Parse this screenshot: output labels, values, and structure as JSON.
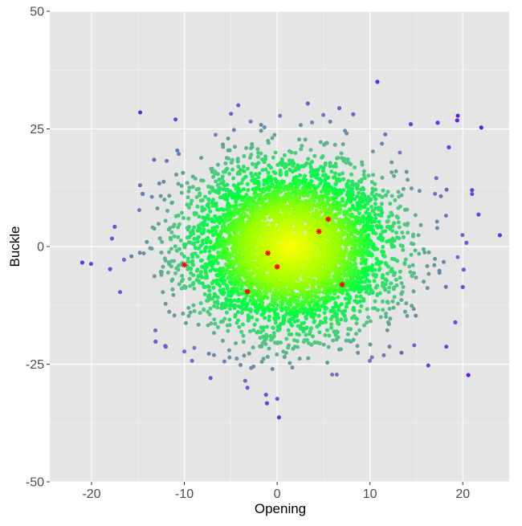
{
  "chart_data": {
    "type": "scatter",
    "title": "",
    "xlabel": "Opening",
    "ylabel": "Buckle",
    "xlim": [
      -24.5,
      25
    ],
    "ylim": [
      -50,
      50
    ],
    "x_ticks": [
      -20,
      -10,
      0,
      10,
      20
    ],
    "y_ticks": [
      -50,
      -25,
      0,
      25,
      50
    ],
    "x_tick_labels": [
      "-20",
      "-10",
      "0",
      "10",
      "20"
    ],
    "y_tick_labels": [
      "-50",
      "-25",
      "0",
      "25",
      "50"
    ],
    "grid": true,
    "legend": "none",
    "colors": {
      "panel_background": "#e5e5e5",
      "grid_line": "#ffffff",
      "density_center": "#ffff00",
      "density_mid": "#00ff40",
      "density_outer": "#6f8fa0",
      "density_extreme": "#5a1de8",
      "highlight": "#ff0000"
    },
    "cloud_summary": {
      "distribution": "bivariate normal, ~5000 points",
      "center": [
        1.5,
        0
      ],
      "sd": [
        5.5,
        9.0
      ]
    },
    "outlier_points": [
      {
        "x": 10.8,
        "y": 35
      },
      {
        "x": 14.4,
        "y": 26
      },
      {
        "x": 17.3,
        "y": 26.3
      },
      {
        "x": 19.4,
        "y": 26.8
      },
      {
        "x": 22.0,
        "y": 25.3
      },
      {
        "x": 18.5,
        "y": 21.1
      },
      {
        "x": 21.0,
        "y": 12
      },
      {
        "x": 21.7,
        "y": 6.8
      },
      {
        "x": 24.0,
        "y": 2.4
      },
      {
        "x": 20.4,
        "y": 0.8
      },
      {
        "x": 20.1,
        "y": -4.9
      },
      {
        "x": 20.0,
        "y": -8.6
      },
      {
        "x": 19.2,
        "y": -16.1
      },
      {
        "x": 20.6,
        "y": -27.3
      },
      {
        "x": -21.0,
        "y": -3.4
      },
      {
        "x": -17.8,
        "y": 1.7
      },
      {
        "x": -17.5,
        "y": 4.2
      },
      {
        "x": -16.5,
        "y": -2.8
      },
      {
        "x": -18.0,
        "y": -4.8
      },
      {
        "x": -14.5,
        "y": 11.2
      },
      {
        "x": -13.1,
        "y": -20.2
      },
      {
        "x": -12.0,
        "y": -21.3
      },
      {
        "x": -10.0,
        "y": -22.3
      },
      {
        "x": -3.2,
        "y": -30.0
      },
      {
        "x": -1.2,
        "y": -31.5
      },
      {
        "x": -1.1,
        "y": -33.3
      },
      {
        "x": 0.2,
        "y": -36.3
      },
      {
        "x": 6.7,
        "y": 29.4
      },
      {
        "x": 3.3,
        "y": 30.4
      },
      {
        "x": 8.2,
        "y": 28.1
      }
    ],
    "highlighted_points": [
      {
        "x": -10.0,
        "y": -3.9
      },
      {
        "x": -3.2,
        "y": -9.6
      },
      {
        "x": -1.0,
        "y": -1.4
      },
      {
        "x": 0.0,
        "y": -4.3
      },
      {
        "x": 4.5,
        "y": 3.2
      },
      {
        "x": 5.5,
        "y": 5.8
      },
      {
        "x": 7.0,
        "y": -8.1
      }
    ]
  }
}
